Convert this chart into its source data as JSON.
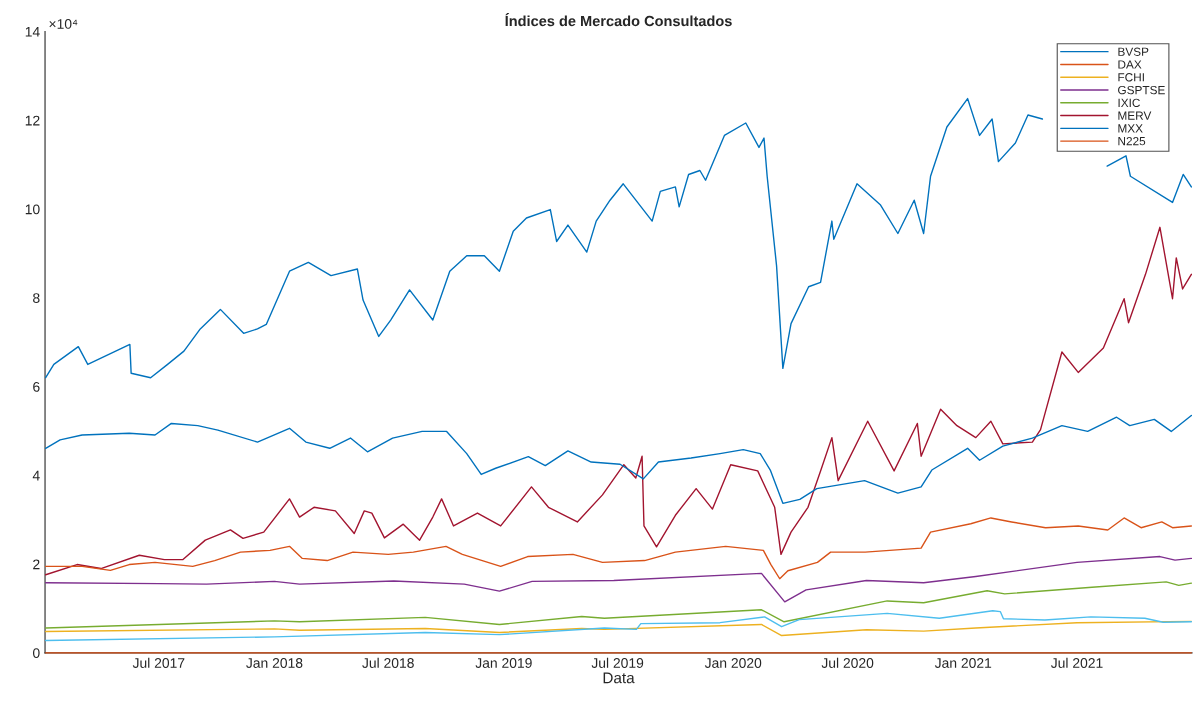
{
  "chart_data": {
    "type": "line",
    "title": "Índices de Mercado Consultados",
    "xlabel": "Data",
    "annotations": [
      "×10⁴"
    ],
    "xlim": [
      "2017-01-01",
      "2021-12-31"
    ],
    "xticks": [
      {
        "value": "2017-07-01",
        "label": "Jul 2017"
      },
      {
        "value": "2018-01-01",
        "label": "Jan 2018"
      },
      {
        "value": "2018-07-01",
        "label": "Jul 2018"
      },
      {
        "value": "2019-01-01",
        "label": "Jan 2019"
      },
      {
        "value": "2019-07-01",
        "label": "Jul 2019"
      },
      {
        "value": "2020-01-01",
        "label": "Jan 2020"
      },
      {
        "value": "2020-07-01",
        "label": "Jul 2020"
      },
      {
        "value": "2021-01-01",
        "label": "Jan 2021"
      },
      {
        "value": "2021-07-01",
        "label": "Jul 2021"
      }
    ],
    "ylim": [
      0,
      14
    ],
    "yticks": [
      0,
      2,
      4,
      6,
      8,
      10,
      12,
      14
    ],
    "grid": false,
    "legend": "top right",
    "line_style": "solid",
    "marker": "none",
    "series": [
      {
        "name": "BVSP",
        "color": "#0072bd",
        "x": [
          "2017-01-02",
          "2017-01-15",
          "2017-02-23",
          "2017-03-10",
          "2017-05-16",
          "2017-05-18",
          "2017-06-18",
          "2017-07-15",
          "2017-08-10",
          "2017-09-05",
          "2017-10-07",
          "2017-11-13",
          "2017-12-05",
          "2017-12-19",
          "2018-01-25",
          "2018-02-24",
          "2018-04-01",
          "2018-05-13",
          "2018-05-22",
          "2018-06-16",
          "2018-07-05",
          "2018-08-04",
          "2018-09-10",
          "2018-10-07",
          "2018-11-03",
          "2018-12-01",
          "2018-12-25",
          "2019-01-16",
          "2019-02-06",
          "2019-03-16",
          "2019-03-26",
          "2019-04-13",
          "2019-05-13",
          "2019-05-28",
          "2019-06-19",
          "2019-07-10",
          "2019-08-25",
          "2019-09-07",
          "2019-10-01",
          "2019-10-07",
          "2019-10-22",
          "2019-11-09",
          "2019-11-18",
          "2019-12-18",
          "2020-01-21",
          "2020-02-11",
          "2020-02-19",
          "2020-02-24",
          "2020-03-10",
          "2020-03-20",
          "2020-04-02",
          "2020-04-30",
          "2020-05-19",
          "2020-06-06",
          "2020-06-09",
          "2020-07-16",
          "2020-08-22",
          "2020-09-19",
          "2020-10-15",
          "2020-10-30",
          "2020-11-10",
          "2020-12-06",
          "2021-01-08",
          "2021-01-27",
          "2021-02-16",
          "2021-02-26",
          "2021-03-25",
          "2021-04-14",
          "2021-05-07",
          "2021-06-15",
          "2021-08-18",
          "2021-09-17",
          "2021-09-24",
          "2021-11-30",
          "2021-12-17",
          "2021-12-30"
        ],
        "values": [
          6.2,
          6.5,
          6.9,
          6.5,
          6.95,
          6.3,
          6.2,
          6.5,
          6.8,
          7.3,
          7.74,
          7.2,
          7.3,
          7.4,
          8.6,
          8.8,
          8.5,
          8.65,
          7.95,
          7.13,
          7.5,
          8.18,
          7.5,
          8.6,
          8.95,
          8.95,
          8.6,
          9.5,
          9.8,
          9.99,
          9.27,
          9.64,
          9.03,
          9.73,
          10.2,
          10.57,
          9.73,
          10.4,
          10.5,
          10.05,
          10.78,
          10.87,
          10.65,
          11.66,
          11.94,
          11.39,
          11.6,
          10.74,
          8.72,
          6.41,
          7.42,
          8.25,
          8.35,
          9.73,
          9.32,
          10.57,
          10.1,
          9.45,
          10.2,
          9.45,
          10.74,
          11.85,
          12.49,
          11.66,
          12.03,
          11.07,
          11.49,
          12.12,
          12.03,
          null,
          10.97,
          11.2,
          10.74,
          10.15,
          10.78,
          10.5
        ]
      },
      {
        "name": "DAX",
        "color": "#d95319",
        "x": [
          "2017-01-02",
          "2021-12-30"
        ],
        "values": [
          0,
          0
        ]
      },
      {
        "name": "FCHI",
        "color": "#edb120",
        "x": [
          "2017-01-02",
          "2018-01-01",
          "2018-02-10",
          "2018-08-29",
          "2018-12-25",
          "2019-05-05",
          "2019-06-10",
          "2020-02-15",
          "2020-03-18",
          "2020-07-31",
          "2020-10-30",
          "2021-01-21",
          "2021-07-01",
          "2021-12-30"
        ],
        "values": [
          0.48,
          0.54,
          0.51,
          0.55,
          0.46,
          0.55,
          0.53,
          0.64,
          0.39,
          0.52,
          0.49,
          0.56,
          0.68,
          0.71
        ]
      },
      {
        "name": "GSPTSE",
        "color": "#7e2f8e",
        "x": [
          "2017-01-02",
          "2017-07-01",
          "2017-09-15",
          "2018-01-01",
          "2018-02-10",
          "2018-07-10",
          "2018-10-30",
          "2018-12-25",
          "2019-02-15",
          "2019-06-25",
          "2020-02-15",
          "2020-03-23",
          "2020-04-26",
          "2020-07-31",
          "2020-10-30",
          "2021-01-21",
          "2021-07-01",
          "2021-11-10",
          "2021-12-04",
          "2021-12-30"
        ],
        "values": [
          1.58,
          1.56,
          1.55,
          1.61,
          1.55,
          1.62,
          1.55,
          1.39,
          1.61,
          1.63,
          1.79,
          1.15,
          1.42,
          1.63,
          1.58,
          1.72,
          2.04,
          2.17,
          2.09,
          2.13
        ]
      },
      {
        "name": "IXIC",
        "color": "#77ac30",
        "x": [
          "2017-01-02",
          "2018-01-01",
          "2018-02-10",
          "2018-08-29",
          "2018-12-25",
          "2019-05-05",
          "2019-06-10",
          "2020-02-15",
          "2020-03-22",
          "2020-09-02",
          "2020-10-30",
          "2021-02-08",
          "2021-03-08",
          "2021-07-25",
          "2021-11-20",
          "2021-12-10",
          "2021-12-30"
        ],
        "values": [
          0.56,
          0.72,
          0.7,
          0.8,
          0.64,
          0.82,
          0.78,
          0.97,
          0.7,
          1.17,
          1.13,
          1.4,
          1.33,
          1.48,
          1.6,
          1.52,
          1.57
        ]
      },
      {
        "color": "#4dbeee",
        "x": [
          "2017-01-02",
          "2018-01-01",
          "2018-08-29",
          "2018-12-25",
          "2019-06-10",
          "2019-07-31",
          "2019-08-07",
          "2019-12-11",
          "2020-02-20",
          "2020-03-18",
          "2020-04-15",
          "2020-09-02",
          "2020-11-24",
          "2021-02-17",
          "2021-03-01",
          "2021-03-06",
          "2021-05-11",
          "2021-07-23",
          "2021-10-17",
          "2021-11-15",
          "2021-12-30"
        ],
        "values": [
          0.28,
          0.36,
          0.46,
          0.41,
          0.56,
          0.53,
          0.66,
          0.68,
          0.81,
          0.59,
          0.75,
          0.89,
          0.78,
          0.95,
          0.93,
          0.77,
          0.74,
          0.81,
          0.78,
          0.69,
          0.7
        ]
      },
      {
        "name": "MERV",
        "color": "#a2142f",
        "x": [
          "2017-01-02",
          "2017-02-21",
          "2017-03-31",
          "2017-05-31",
          "2017-07-10",
          "2017-08-08",
          "2017-09-13",
          "2017-10-23",
          "2017-11-12",
          "2017-12-15",
          "2018-01-25",
          "2018-02-10",
          "2018-03-05",
          "2018-04-08",
          "2018-05-08",
          "2018-05-24",
          "2018-06-05",
          "2018-06-25",
          "2018-07-25",
          "2018-08-20",
          "2018-09-10",
          "2018-09-24",
          "2018-10-13",
          "2018-11-20",
          "2018-12-27",
          "2019-02-14",
          "2019-03-13",
          "2019-04-28",
          "2019-06-07",
          "2019-07-11",
          "2019-07-30",
          "2019-08-09",
          "2019-08-12",
          "2019-09-01",
          "2019-10-01",
          "2019-11-03",
          "2019-11-29",
          "2019-12-28",
          "2020-02-09",
          "2020-03-07",
          "2020-03-17",
          "2020-04-02",
          "2020-04-29",
          "2020-05-19",
          "2020-06-06",
          "2020-06-16",
          "2020-08-02",
          "2020-09-13",
          "2020-10-20",
          "2020-10-26",
          "2020-11-26",
          "2020-12-22",
          "2021-01-21",
          "2021-02-14",
          "2021-03-05",
          "2021-04-21",
          "2021-05-04",
          "2021-06-07",
          "2021-07-03",
          "2021-08-12",
          "2021-09-14",
          "2021-09-21",
          "2021-10-18",
          "2021-11-10",
          "2021-11-30",
          "2021-12-06",
          "2021-12-16",
          "2021-12-30"
        ],
        "values": [
          1.76,
          1.99,
          1.9,
          2.2,
          2.1,
          2.1,
          2.54,
          2.77,
          2.58,
          2.72,
          3.47,
          3.06,
          3.28,
          3.2,
          2.69,
          3.2,
          3.15,
          2.59,
          2.9,
          2.54,
          3.06,
          3.47,
          2.86,
          3.15,
          2.86,
          3.74,
          3.28,
          2.95,
          3.56,
          4.24,
          3.94,
          4.43,
          2.86,
          2.39,
          3.1,
          3.7,
          3.24,
          4.24,
          4.1,
          3.28,
          2.22,
          2.72,
          3.28,
          4.1,
          4.85,
          3.88,
          5.22,
          4.1,
          5.17,
          4.43,
          5.49,
          5.12,
          4.85,
          5.22,
          4.71,
          4.75,
          5.03,
          6.78,
          6.32,
          6.87,
          7.98,
          7.44,
          8.53,
          9.59,
          7.98,
          8.9,
          8.2,
          8.53
        ]
      },
      {
        "name": "MXX",
        "color": "#0072bd",
        "x": [
          "2017-01-02",
          "2017-01-25",
          "2017-03-01",
          "2017-05-15",
          "2017-06-25",
          "2017-07-21",
          "2017-09-01",
          "2017-10-03",
          "2017-12-05",
          "2018-01-25",
          "2018-02-20",
          "2018-03-30",
          "2018-05-02",
          "2018-05-29",
          "2018-07-08",
          "2018-08-24",
          "2018-10-02",
          "2018-11-03",
          "2018-11-26",
          "2018-12-19",
          "2019-02-09",
          "2019-03-08",
          "2019-04-13",
          "2019-05-20",
          "2019-07-05",
          "2019-08-11",
          "2019-09-04",
          "2019-10-26",
          "2019-12-11",
          "2020-01-17",
          "2020-02-13",
          "2020-02-29",
          "2020-03-20",
          "2020-04-16",
          "2020-05-13",
          "2020-07-28",
          "2020-09-19",
          "2020-10-26",
          "2020-11-12",
          "2021-01-08",
          "2021-01-27",
          "2021-03-05",
          "2021-04-21",
          "2021-06-07",
          "2021-07-18",
          "2021-09-02",
          "2021-09-23",
          "2021-11-01",
          "2021-11-28",
          "2021-12-30"
        ],
        "values": [
          4.61,
          4.8,
          4.91,
          4.95,
          4.91,
          5.17,
          5.12,
          5.02,
          4.75,
          5.06,
          4.75,
          4.61,
          4.84,
          4.53,
          4.84,
          4.99,
          4.99,
          4.49,
          4.02,
          4.16,
          4.42,
          4.22,
          4.55,
          4.3,
          4.25,
          3.92,
          4.3,
          4.39,
          4.49,
          4.58,
          4.49,
          4.12,
          3.37,
          3.46,
          3.7,
          3.88,
          3.6,
          3.74,
          4.12,
          4.61,
          4.34,
          4.66,
          4.84,
          5.12,
          4.99,
          5.31,
          5.12,
          5.26,
          4.99,
          5.35
        ]
      },
      {
        "name": "N225",
        "color": "#d95319",
        "x": [
          "2017-01-02",
          "2017-03-01",
          "2017-04-15",
          "2017-05-15",
          "2017-06-25",
          "2017-08-24",
          "2017-09-28",
          "2017-11-08",
          "2017-12-25",
          "2018-01-25",
          "2018-02-14",
          "2018-03-26",
          "2018-05-06",
          "2018-07-01",
          "2018-08-10",
          "2018-10-01",
          "2018-10-27",
          "2018-12-27",
          "2019-02-08",
          "2019-04-21",
          "2019-06-07",
          "2019-08-13",
          "2019-10-01",
          "2019-12-20",
          "2020-02-18",
          "2020-03-01",
          "2020-03-15",
          "2020-03-28",
          "2020-05-14",
          "2020-06-04",
          "2020-07-29",
          "2020-10-26",
          "2020-11-10",
          "2021-01-13",
          "2021-02-14",
          "2021-03-19",
          "2021-05-12",
          "2021-07-03",
          "2021-08-19",
          "2021-09-14",
          "2021-10-11",
          "2021-11-13",
          "2021-11-30",
          "2021-12-30"
        ],
        "values": [
          1.95,
          1.95,
          1.86,
          1.99,
          2.04,
          1.95,
          2.08,
          2.27,
          2.31,
          2.4,
          2.13,
          2.08,
          2.27,
          2.22,
          2.27,
          2.4,
          2.22,
          1.95,
          2.17,
          2.22,
          2.04,
          2.08,
          2.27,
          2.4,
          2.31,
          1.99,
          1.67,
          1.85,
          2.04,
          2.27,
          2.27,
          2.36,
          2.72,
          2.91,
          3.04,
          2.95,
          2.82,
          2.86,
          2.77,
          3.04,
          2.82,
          2.95,
          2.82,
          2.86
        ]
      }
    ]
  }
}
